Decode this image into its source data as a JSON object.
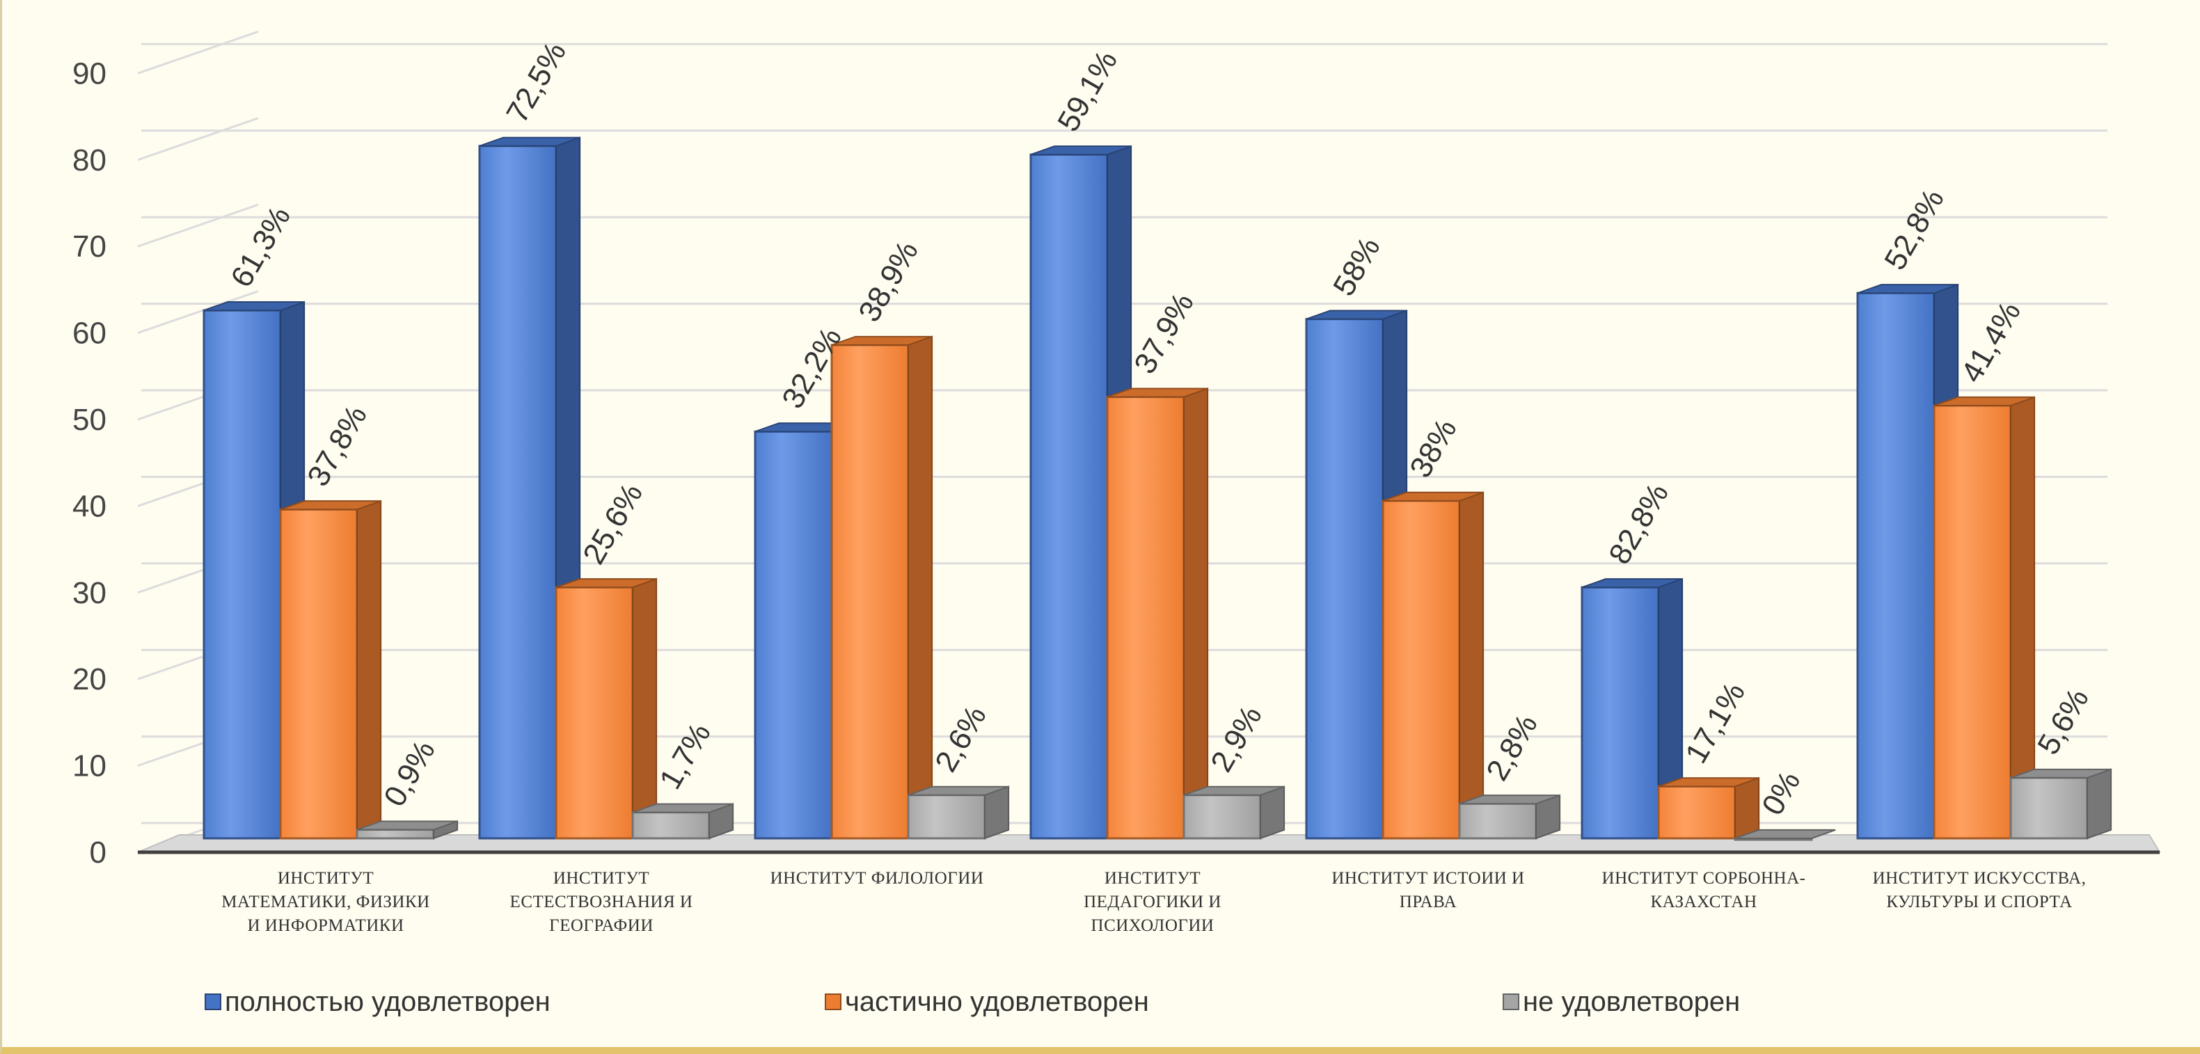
{
  "chart_data": {
    "type": "bar",
    "title": "",
    "xlabel": "",
    "ylabel": "",
    "ylim": [
      0,
      90
    ],
    "yticks": [
      0,
      10,
      20,
      30,
      40,
      50,
      60,
      70,
      80,
      90
    ],
    "grid": true,
    "legend_position": "bottom",
    "categories": [
      [
        "ИНСТИТУТ",
        "МАТЕМАТИКИ, ФИЗИКИ",
        "И ИНФОРМАТИКИ"
      ],
      [
        "ИНСТИТУТ",
        "ЕСТЕСТВОЗНАНИЯ И",
        "ГЕОГРАФИИ"
      ],
      [
        "ИНСТИТУТ ФИЛОЛОГИИ"
      ],
      [
        "ИНСТИТУТ",
        "ПЕДАГОГИКИ И",
        "ПСИХОЛОГИИ"
      ],
      [
        "ИНСТИТУТ ИСТОИИ И",
        "ПРАВА"
      ],
      [
        "ИНСТИТУТ СОРБОННА-",
        "КАЗАХСТАН"
      ],
      [
        "ИНСТИТУТ ИСКУССТВА,",
        "КУЛЬТУРЫ И СПОРТА"
      ]
    ],
    "series": [
      {
        "name": "полностью удовлетворен",
        "color": "#4472c4",
        "values": [
          61,
          80,
          47,
          79,
          60,
          29,
          63
        ],
        "labels": [
          "61,3%",
          "72,5%",
          "32,2%",
          "59,1%",
          "58%",
          "82,8%",
          "52,8%"
        ]
      },
      {
        "name": "частично удовлетворен",
        "color": "#ed7d31",
        "values": [
          38,
          29,
          57,
          51,
          39,
          6,
          50
        ],
        "labels": [
          "37,8%",
          "25,6%",
          "38,9%",
          "37,9%",
          "38%",
          "17,1%",
          "41,4%"
        ]
      },
      {
        "name": "не удовлетворен",
        "color": "#a5a5a5",
        "values": [
          1,
          3,
          5,
          5,
          4,
          0,
          7
        ],
        "labels": [
          "0,9%",
          "1,7%",
          "2,6%",
          "2,9%",
          "2,8%",
          "0%",
          "5,6%"
        ]
      }
    ]
  }
}
